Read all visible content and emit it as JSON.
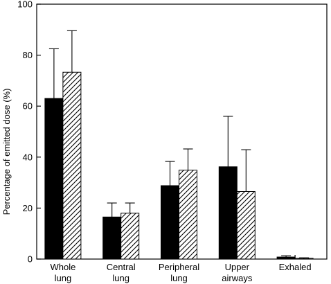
{
  "chart_data": {
    "type": "bar",
    "ylabel": "Percentage of emitted dose (%)",
    "xlabel": "",
    "ylim": [
      0,
      100
    ],
    "yticks": [
      0,
      20,
      40,
      60,
      80,
      100
    ],
    "grid": false,
    "categories": [
      [
        "Whole",
        "lung"
      ],
      [
        "Central",
        "lung"
      ],
      [
        "Peripheral",
        "lung"
      ],
      [
        "Upper",
        "airways"
      ],
      [
        "Exhaled"
      ]
    ],
    "series": [
      {
        "fill": "solid-black",
        "values": [
          63,
          16.5,
          28.8,
          36.2,
          0.8
        ],
        "errors": [
          19.5,
          5.5,
          9.5,
          19.8,
          0.5
        ]
      },
      {
        "fill": "diagonal-hatch",
        "values": [
          73.3,
          18,
          34.9,
          26.5,
          0.3
        ],
        "errors": [
          16.3,
          4,
          8.3,
          16.4,
          0.2
        ]
      }
    ],
    "colors": {
      "bar_solid": "#000000",
      "hatch_line": "#000000",
      "axis": "#000000",
      "background": "#ffffff"
    }
  }
}
